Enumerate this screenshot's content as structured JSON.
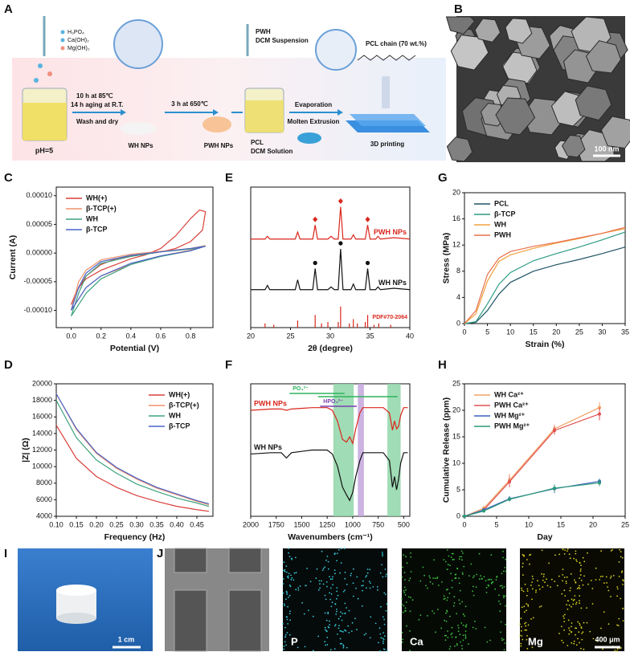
{
  "panel_labels": [
    "A",
    "B",
    "C",
    "D",
    "E",
    "F",
    "G",
    "H",
    "I",
    "J"
  ],
  "schematic": {
    "reagents": [
      "H₃PO₄",
      "Ca(OH)₂",
      "Mg(OH)₂"
    ],
    "ph": "pH=5",
    "step1": [
      "10 h at 85℃",
      "14 h aging at R.T.",
      "Wash and dry"
    ],
    "wh": "WH NPs",
    "step2": "3 h at 650℃",
    "pwh": "PWH NPs",
    "suspension": [
      "PWH",
      "DCM Suspension"
    ],
    "solution": [
      "PCL",
      "DCM Solution"
    ],
    "step3": [
      "Evaporation",
      "Molten Extrusion"
    ],
    "printing": "3D printing",
    "chain": "PCL chain (70 wt.%)"
  },
  "images": {
    "sem_scale": "100 nm",
    "photo_scale": "1 cm",
    "eds_scale": "400 μm",
    "eds_elements": [
      "P",
      "Ca",
      "Mg"
    ]
  },
  "chart_data": [
    {
      "type": "line",
      "xlabel": "Potential (V)",
      "ylabel": "Current (A)",
      "legend": "upper left",
      "xlim": [
        -0.1,
        0.95
      ],
      "ylim": [
        -0.00013,
        0.000115
      ],
      "xticks": [
        {
          "value": 0,
          "label": "0.0"
        },
        {
          "value": 0.2,
          "label": "0.2"
        },
        {
          "value": 0.4,
          "label": "0.4"
        },
        {
          "value": 0.6,
          "label": "0.6"
        },
        {
          "value": 0.8,
          "label": "0.8"
        }
      ],
      "yticks": [
        {
          "value": -0.0001,
          "label": "-0.00010"
        },
        {
          "value": -5e-05,
          "label": "-0.00005"
        },
        {
          "value": 0,
          "label": "0.00000"
        },
        {
          "value": 5e-05,
          "label": "0.00005"
        },
        {
          "value": 0.0001,
          "label": "0.00010"
        }
      ],
      "series": [
        {
          "name": "WH(+)",
          "color": "#d9413c",
          "x": [
            0,
            0.05,
            0.1,
            0.2,
            0.3,
            0.4,
            0.5,
            0.6,
            0.7,
            0.8,
            0.86,
            0.9,
            0.88,
            0.8,
            0.7,
            0.6,
            0.5,
            0.4,
            0.3,
            0.2,
            0.1,
            0.03,
            0
          ],
          "values": [
            -9e-05,
            -6e-05,
            -4.5e-05,
            -3e-05,
            -2e-05,
            -1e-05,
            -3e-06,
            8e-06,
            3e-05,
            6e-05,
            7.5e-05,
            7.2e-05,
            4e-05,
            2e-05,
            8e-06,
            2e-06,
            -2e-06,
            -5e-06,
            -1e-05,
            -2e-05,
            -4e-05,
            -7e-05,
            -9e-05
          ]
        },
        {
          "name": "β-TCP(+)",
          "color": "#f0906a",
          "x": [
            0,
            0.05,
            0.1,
            0.2,
            0.4,
            0.6,
            0.8,
            0.9,
            0.8,
            0.6,
            0.4,
            0.2,
            0.1,
            0.05,
            0
          ],
          "values": [
            -0.0001,
            -5e-05,
            -3e-05,
            -1.2e-05,
            -2e-06,
            3e-06,
            8e-06,
            1.3e-05,
            5e-06,
            -5e-06,
            -2e-05,
            -4e-05,
            -6e-05,
            -8e-05,
            -0.0001
          ]
        },
        {
          "name": "WH",
          "color": "#3ea37d",
          "x": [
            0,
            0.05,
            0.1,
            0.2,
            0.4,
            0.6,
            0.8,
            0.9,
            0.8,
            0.6,
            0.4,
            0.2,
            0.1,
            0.05,
            0
          ],
          "values": [
            -0.00011,
            -7e-05,
            -4e-05,
            -1.8e-05,
            -6e-06,
            2e-06,
            7e-06,
            1.2e-05,
            4e-06,
            -6e-06,
            -2e-05,
            -4.5e-05,
            -7e-05,
            -9e-05,
            -0.00011
          ]
        },
        {
          "name": "β-TCP",
          "color": "#4a64c8",
          "x": [
            0,
            0.05,
            0.1,
            0.2,
            0.4,
            0.6,
            0.8,
            0.9,
            0.8,
            0.6,
            0.4,
            0.2,
            0.1,
            0.05,
            0
          ],
          "values": [
            -0.0001,
            -6e-05,
            -3.5e-05,
            -1.5e-05,
            -4e-06,
            2e-06,
            8e-06,
            1.2e-05,
            4e-06,
            -5e-06,
            -1.8e-05,
            -4e-05,
            -6e-05,
            -8e-05,
            -0.0001
          ]
        }
      ]
    },
    {
      "type": "line",
      "xlabel": "2θ (degree)",
      "legend": "inline-right",
      "xlim": [
        20,
        40
      ],
      "ylim": [
        0,
        100
      ],
      "xticks": [
        20,
        25,
        30,
        35,
        40
      ],
      "x": [
        20,
        21.8,
        22.1,
        22.4,
        25.6,
        25.9,
        26.2,
        27.8,
        28.1,
        28.4,
        29.7,
        30.1,
        30.5,
        31.0,
        31.3,
        31.6,
        32.6,
        32.9,
        33.2,
        34.4,
        34.7,
        35.0,
        35.7,
        36.0,
        36.3,
        38,
        40
      ],
      "series": [
        {
          "name": "PWH NPs",
          "color": "#d9261c",
          "marker": "diamond",
          "markers": [
            28.1,
            31.3,
            34.7
          ],
          "values": [
            63,
            63,
            65,
            63,
            63,
            68,
            63,
            63,
            73,
            63,
            63,
            65,
            63,
            63,
            86,
            63,
            63,
            66,
            63,
            63,
            73,
            63,
            63,
            65,
            63,
            64,
            63
          ]
        },
        {
          "name": "WH NPs",
          "color": "#111111",
          "marker": "dot",
          "markers": [
            28.1,
            31.3,
            34.7
          ],
          "values": [
            27,
            27,
            30,
            27,
            27,
            34,
            27,
            27,
            42,
            27,
            27,
            29,
            27,
            27,
            56,
            27,
            27,
            31,
            27,
            27,
            42,
            27,
            27,
            29,
            27,
            28,
            27
          ]
        }
      ],
      "sticks": {
        "name": "PDF#70-2064",
        "color": "#d9261c",
        "x": [
          21.8,
          22.9,
          25.9,
          28.1,
          28.9,
          29.7,
          31.0,
          31.3,
          32.4,
          32.9,
          33.4,
          34.4,
          34.7,
          35.5,
          36.1,
          37.6
        ],
        "values": [
          3,
          2,
          5,
          9,
          3,
          4,
          4,
          15,
          3,
          6,
          3,
          4,
          9,
          2,
          3,
          2
        ]
      }
    },
    {
      "type": "line",
      "xlabel": "Strain (%)",
      "ylabel": "Stress (MPa)",
      "legend": "upper left",
      "xlim": [
        0,
        35
      ],
      "ylim": [
        0,
        20
      ],
      "xticks": [
        0,
        5,
        10,
        15,
        20,
        25,
        30,
        35
      ],
      "yticks": [
        0,
        4,
        8,
        12,
        16,
        20
      ],
      "x": [
        0,
        2.5,
        5,
        7.5,
        10,
        15,
        20,
        25,
        30,
        35
      ],
      "series": [
        {
          "name": "PCL",
          "color": "#1f5566",
          "values": [
            0,
            0.2,
            2,
            4.5,
            6.3,
            8,
            9,
            9.8,
            10.7,
            11.7
          ]
        },
        {
          "name": "β-TCP",
          "color": "#2e9c84",
          "values": [
            0,
            0.3,
            3,
            6,
            7.8,
            9.6,
            10.7,
            11.7,
            12.8,
            14
          ]
        },
        {
          "name": "WH",
          "color": "#f0a040",
          "values": [
            0,
            1.5,
            6.5,
            9.5,
            10.5,
            11.5,
            12.3,
            13,
            13.8,
            14.5
          ]
        },
        {
          "name": "PWH",
          "color": "#e8704a",
          "values": [
            0,
            2,
            7.5,
            10,
            11,
            11.8,
            12.4,
            13.1,
            13.8,
            14.7
          ]
        }
      ]
    },
    {
      "type": "line",
      "xlabel": "Frequency (Hz)",
      "ylabel": "|Z| (Ω)",
      "legend": "upper right",
      "xlim": [
        0.1,
        0.49
      ],
      "ylim": [
        4000,
        20000
      ],
      "xticks": [
        {
          "value": 0.1,
          "label": "0.10"
        },
        {
          "value": 0.15,
          "label": "0.15"
        },
        {
          "value": 0.2,
          "label": "0.20"
        },
        {
          "value": 0.25,
          "label": "0.25"
        },
        {
          "value": 0.3,
          "label": "0.30"
        },
        {
          "value": 0.35,
          "label": "0.35"
        },
        {
          "value": 0.4,
          "label": "0.40"
        },
        {
          "value": 0.45,
          "label": "0.45"
        }
      ],
      "yticks": [
        4000,
        6000,
        8000,
        10000,
        12000,
        14000,
        16000,
        18000,
        20000
      ],
      "x": [
        0.1,
        0.15,
        0.2,
        0.25,
        0.3,
        0.35,
        0.4,
        0.45,
        0.48
      ],
      "series": [
        {
          "name": "WH(+)",
          "color": "#d9413c",
          "values": [
            15000,
            11000,
            8800,
            7500,
            6500,
            5800,
            5200,
            4800,
            4600
          ]
        },
        {
          "name": "β-TCP(+)",
          "color": "#f0906a",
          "values": [
            18800,
            14500,
            11600,
            9800,
            8500,
            7400,
            6600,
            5800,
            5400
          ]
        },
        {
          "name": "WH",
          "color": "#3ea37d",
          "values": [
            18000,
            13500,
            10800,
            9200,
            7900,
            7000,
            6200,
            5600,
            5200
          ]
        },
        {
          "name": "β-TCP",
          "color": "#4a64c8",
          "values": [
            18800,
            14600,
            11700,
            9900,
            8600,
            7500,
            6700,
            5900,
            5500
          ]
        }
      ]
    },
    {
      "type": "line",
      "xlabel": "Wavenumbers (cm⁻¹)",
      "legend": "inline-left",
      "xlim": [
        2000,
        440
      ],
      "ylim": [
        0,
        100
      ],
      "xticks": [
        2000,
        1750,
        1500,
        1250,
        1000,
        750,
        500
      ],
      "bands": [
        {
          "from": 1190,
          "to": 990,
          "color": "#8fd6a8"
        },
        {
          "from": 950,
          "to": 890,
          "color": "#c3a6dc"
        },
        {
          "from": 660,
          "to": 530,
          "color": "#8fd6a8"
        }
      ],
      "annotations": [
        {
          "text": "PO₄³⁻",
          "color": "#2db35d",
          "spans": [
            [
              1620,
              1080
            ],
            [
              1340,
              560
            ]
          ]
        },
        {
          "text": "HPO₄²⁻",
          "color": "#7b3fb0",
          "spans": [
            [
              1320,
              960
            ]
          ]
        }
      ],
      "x": [
        2000,
        1800,
        1700,
        1650,
        1600,
        1400,
        1250,
        1200,
        1150,
        1100,
        1060,
        1030,
        1000,
        970,
        930,
        900,
        800,
        700,
        640,
        610,
        590,
        570,
        550,
        530,
        500,
        460
      ],
      "series": [
        {
          "name": "PWH NPs",
          "color": "#d9261c",
          "values": [
            80,
            81,
            81,
            80,
            81,
            82,
            82,
            80,
            72,
            58,
            56,
            60,
            55,
            66,
            78,
            82,
            82,
            82,
            78,
            65,
            72,
            66,
            68,
            76,
            82,
            82
          ]
        },
        {
          "name": "WH NPs",
          "color": "#111111",
          "values": [
            47,
            48,
            48,
            44,
            48,
            50,
            50,
            47,
            38,
            22,
            16,
            12,
            18,
            30,
            42,
            48,
            48,
            48,
            42,
            22,
            30,
            20,
            28,
            40,
            48,
            48
          ]
        }
      ]
    },
    {
      "type": "errorbar",
      "xlabel": "Day",
      "ylabel": "Cumulative Release (ppm)",
      "legend": "upper left",
      "xlim": [
        0,
        25
      ],
      "ylim": [
        0,
        25
      ],
      "xticks": [
        0,
        5,
        10,
        15,
        20,
        25
      ],
      "yticks": [
        0,
        5,
        10,
        15,
        20,
        25
      ],
      "x": [
        0,
        3,
        7,
        14,
        21
      ],
      "series": [
        {
          "name": "WH Ca²⁺",
          "color": "#f0a060",
          "values": [
            0,
            1.5,
            6.8,
            16.5,
            20.5
          ],
          "errors": [
            0,
            0.5,
            1.2,
            0.8,
            1.0
          ]
        },
        {
          "name": "PWH Ca²⁺",
          "color": "#e05050",
          "values": [
            0,
            1.2,
            6.5,
            16.2,
            19.3
          ],
          "errors": [
            0,
            0.4,
            1.0,
            0.8,
            1.2
          ]
        },
        {
          "name": "WH Mg²⁺",
          "color": "#3a60c0",
          "values": [
            0,
            1.2,
            3.3,
            5.2,
            6.6
          ],
          "errors": [
            0,
            0.3,
            0.5,
            0.8,
            0.5
          ]
        },
        {
          "name": "PWH Mg²⁺",
          "color": "#2a9a7a",
          "values": [
            0,
            1.0,
            3.2,
            5.3,
            6.3
          ],
          "errors": [
            0,
            0.3,
            0.4,
            0.7,
            0.6
          ]
        }
      ]
    }
  ]
}
